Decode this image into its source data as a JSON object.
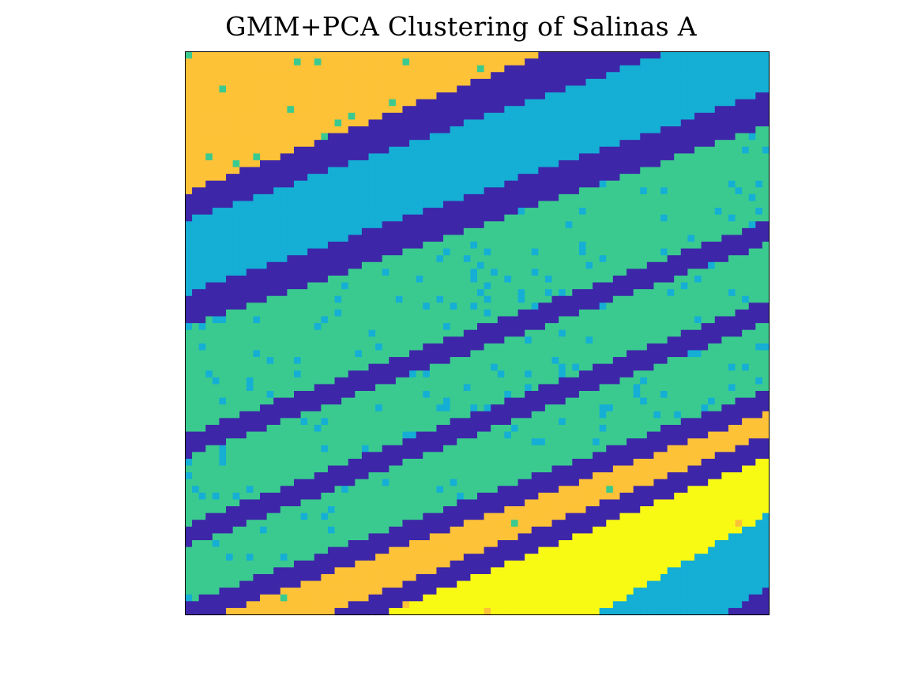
{
  "page": {
    "title": "GMM+PCA Clustering of Salinas A"
  },
  "chart_data": {
    "type": "heatmap",
    "title": "GMM+PCA Clustering of Salinas A",
    "xlabel": "",
    "ylabel": "",
    "grid": false,
    "axis_ticks": false,
    "grid_size": {
      "rows": 83,
      "cols": 86
    },
    "colormap": {
      "1": "#3E26A8",
      "2": "#2E87F8",
      "3": "#15AED5",
      "4": "#3ACA8F",
      "5": "#FDC237",
      "6": "#F9FA14"
    },
    "diagonal_band_sequence_top_left_to_bottom_right": [
      5,
      1,
      3,
      1,
      4,
      1,
      4,
      1,
      4,
      1,
      5,
      1,
      6,
      3,
      1
    ],
    "noise_clusters_note_free": true
  }
}
